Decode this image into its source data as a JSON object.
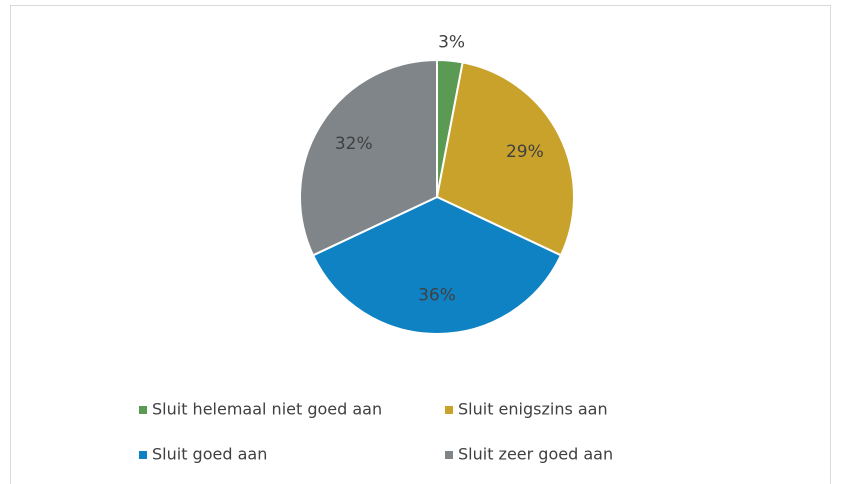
{
  "chart_data": {
    "type": "pie",
    "categories": [
      "Sluit helemaal niet goed aan",
      "Sluit enigszins aan",
      "Sluit goed aan",
      "Sluit zeer goed aan"
    ],
    "values": [
      3,
      29,
      36,
      32
    ],
    "value_labels": [
      "3%",
      "29%",
      "36%",
      "32%"
    ],
    "colors": [
      "#5b9a53",
      "#c9a22b",
      "#0f82c4",
      "#7f8589"
    ],
    "legend": "bottom"
  }
}
